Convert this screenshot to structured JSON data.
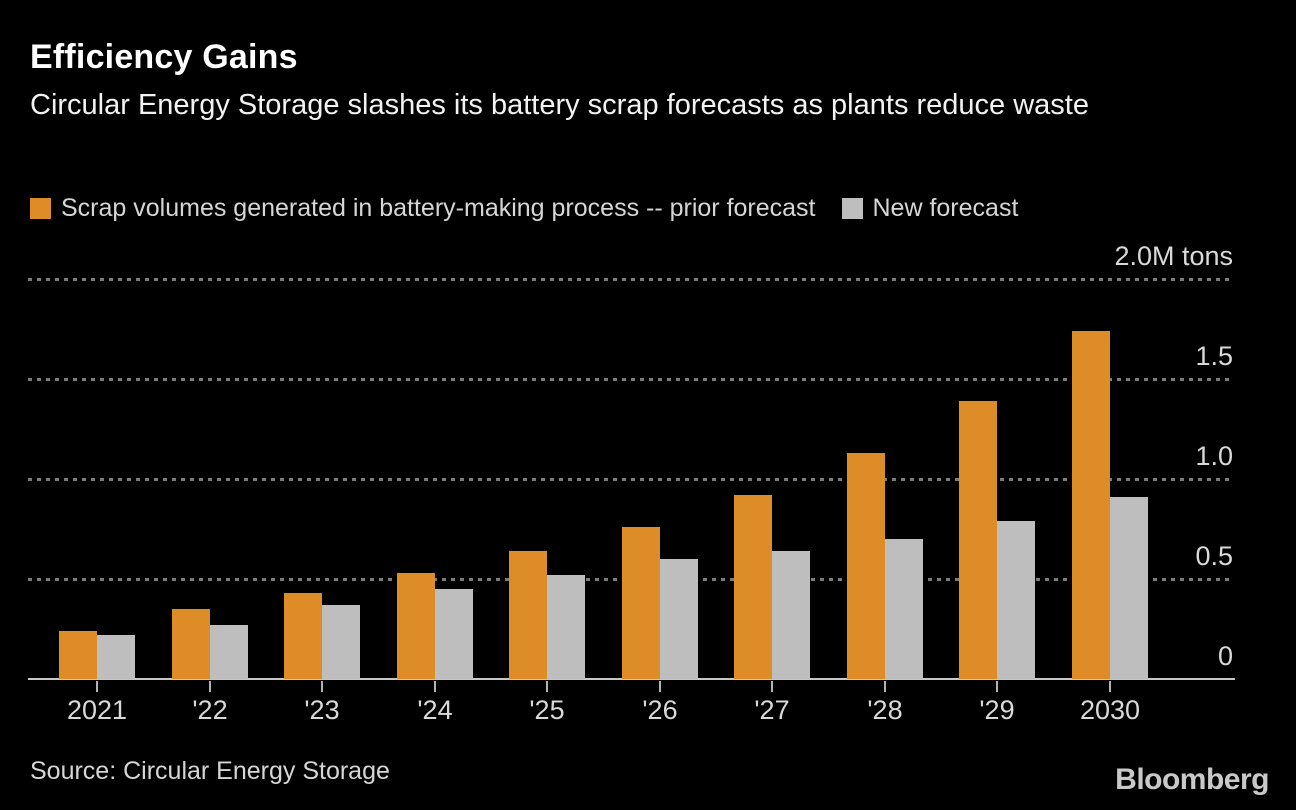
{
  "header": {
    "title": "Efficiency Gains",
    "subtitle": "Circular Energy Storage slashes its battery scrap forecasts as plants reduce waste"
  },
  "legend": [
    {
      "label": "Scrap volumes generated in battery-making process -- prior forecast",
      "color": "#dd8c28"
    },
    {
      "label": "New forecast",
      "color": "#bebebe"
    }
  ],
  "chart_data": {
    "type": "bar",
    "title": "Efficiency Gains",
    "subtitle": "Circular Energy Storage slashes its battery scrap forecasts as plants reduce waste",
    "unit": "M tons",
    "categories": [
      "2021",
      "'22",
      "'23",
      "'24",
      "'25",
      "'26",
      "'27",
      "'28",
      "'29",
      "2030"
    ],
    "series": [
      {
        "name": "Scrap volumes generated in battery-making process -- prior forecast",
        "color": "#dd8c28",
        "values": [
          0.24,
          0.35,
          0.43,
          0.53,
          0.64,
          0.76,
          0.92,
          1.13,
          1.39,
          1.74
        ]
      },
      {
        "name": "New forecast",
        "color": "#bebebe",
        "values": [
          0.22,
          0.27,
          0.37,
          0.45,
          0.52,
          0.6,
          0.64,
          0.7,
          0.79,
          0.91
        ]
      }
    ],
    "ylim": [
      0,
      2.0
    ],
    "yticks": [
      {
        "value": 2.0,
        "label": "2.0M tons"
      },
      {
        "value": 1.5,
        "label": "1.5"
      },
      {
        "value": 1.0,
        "label": "1.0"
      },
      {
        "value": 0.5,
        "label": "0.5"
      },
      {
        "value": 0,
        "label": "0"
      }
    ],
    "grid": "horizontal-dotted-behind-bars",
    "legend_position": "top"
  },
  "footer": {
    "source": "Source: Circular Energy Storage",
    "brand": "Bloomberg"
  }
}
